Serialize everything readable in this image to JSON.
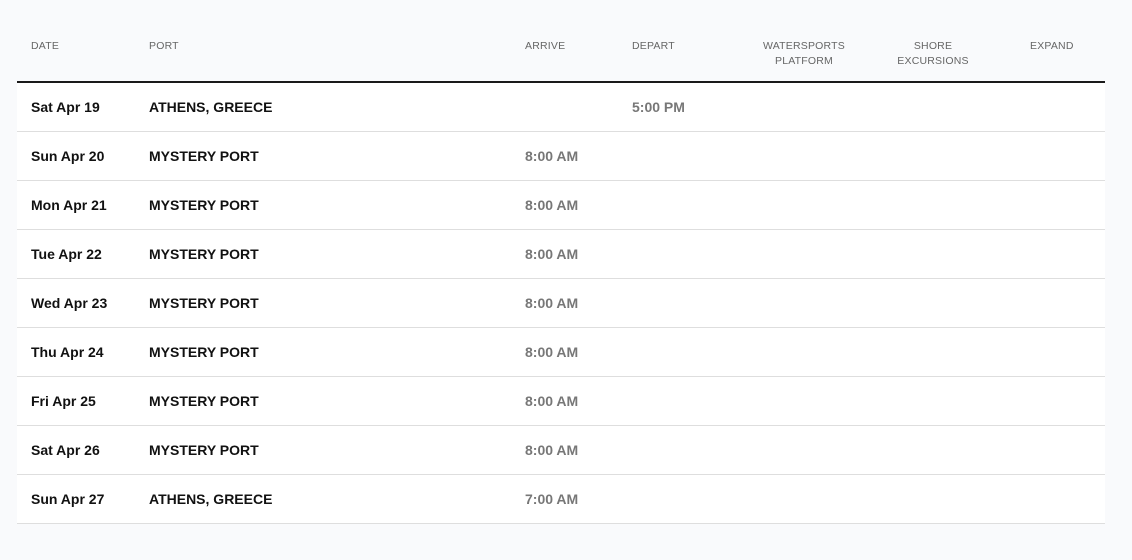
{
  "headers": {
    "date": "DATE",
    "port": "PORT",
    "arrive": "ARRIVE",
    "depart": "DEPART",
    "watersports_1": "WATERSPORTS",
    "watersports_2": "PLATFORM",
    "shore_1": "SHORE",
    "shore_2": "EXCURSIONS",
    "expand": "EXPAND"
  },
  "rows": [
    {
      "date": "Sat Apr 19",
      "port": "ATHENS, GREECE",
      "arrive": "",
      "depart": "5:00 PM"
    },
    {
      "date": "Sun Apr 20",
      "port": "MYSTERY PORT",
      "arrive": "8:00 AM",
      "depart": ""
    },
    {
      "date": "Mon Apr 21",
      "port": "MYSTERY PORT",
      "arrive": "8:00 AM",
      "depart": ""
    },
    {
      "date": "Tue Apr 22",
      "port": "MYSTERY PORT",
      "arrive": "8:00 AM",
      "depart": ""
    },
    {
      "date": "Wed Apr 23",
      "port": "MYSTERY PORT",
      "arrive": "8:00 AM",
      "depart": ""
    },
    {
      "date": "Thu Apr 24",
      "port": "MYSTERY PORT",
      "arrive": "8:00 AM",
      "depart": ""
    },
    {
      "date": "Fri Apr 25",
      "port": "MYSTERY PORT",
      "arrive": "8:00 AM",
      "depart": ""
    },
    {
      "date": "Sat Apr 26",
      "port": "MYSTERY PORT",
      "arrive": "8:00 AM",
      "depart": ""
    },
    {
      "date": "Sun Apr 27",
      "port": "ATHENS, GREECE",
      "arrive": "7:00 AM",
      "depart": ""
    }
  ]
}
